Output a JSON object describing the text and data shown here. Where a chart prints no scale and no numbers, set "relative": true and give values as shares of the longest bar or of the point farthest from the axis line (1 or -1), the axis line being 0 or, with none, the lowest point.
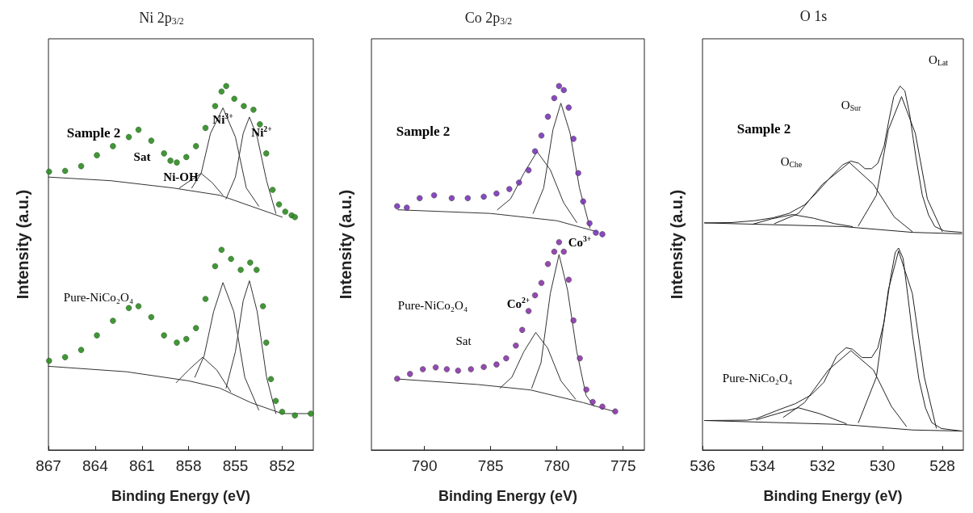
{
  "chart_data": [
    {
      "type": "line",
      "title": "Ni 2p$_{3/2}$",
      "xlabel": "Binding Energy (eV)",
      "ylabel": "Intensity (a.u.)",
      "relative": true,
      "xlim": [
        867,
        850
      ],
      "xticks": [
        867,
        864,
        861,
        858,
        855,
        852
      ],
      "line_style": "solid",
      "series": [
        {
          "type": "line",
          "color": "#333333",
          "x": [
            867,
            863,
            859,
            856,
            854,
            852
          ],
          "values": [
            0.75,
            0.74,
            0.72,
            0.7,
            0.67,
            0.64
          ]
        },
        {
          "type": "line",
          "color": "#333333",
          "x": [
            858.6,
            857.9,
            857.2,
            856.5,
            855.8
          ],
          "values": [
            0.72,
            0.74,
            0.76,
            0.735,
            0.7
          ]
        },
        {
          "type": "line",
          "color": "#333333",
          "x": [
            857.8,
            857.2,
            856.6,
            855.8,
            855.0,
            854.3,
            853.5
          ],
          "values": [
            0.72,
            0.76,
            0.87,
            0.94,
            0.86,
            0.72,
            0.67
          ]
        },
        {
          "type": "line",
          "color": "#333333",
          "x": [
            855.6,
            855.0,
            854.5,
            854.1,
            853.6,
            853.0,
            852.4
          ],
          "values": [
            0.69,
            0.75,
            0.87,
            0.915,
            0.86,
            0.74,
            0.65
          ]
        },
        {
          "type": "line",
          "color": "#333333",
          "x": [
            867,
            862,
            858,
            856,
            854,
            852,
            850.2
          ],
          "values": [
            0.23,
            0.215,
            0.19,
            0.17,
            0.13,
            0.1,
            0.1
          ]
        },
        {
          "type": "line",
          "color": "#333333",
          "x": [
            858.8,
            858.0,
            857.1,
            856.2,
            855.3
          ],
          "values": [
            0.185,
            0.22,
            0.255,
            0.22,
            0.16
          ]
        },
        {
          "type": "line",
          "color": "#333333",
          "x": [
            857.6,
            857.0,
            856.4,
            855.8,
            855.1,
            854.4,
            853.5
          ],
          "values": [
            0.2,
            0.26,
            0.38,
            0.46,
            0.38,
            0.2,
            0.11
          ]
        },
        {
          "type": "line",
          "color": "#333333",
          "x": [
            855.6,
            855.0,
            854.5,
            854.1,
            853.6,
            853.0,
            852.4
          ],
          "values": [
            0.17,
            0.27,
            0.41,
            0.465,
            0.38,
            0.2,
            0.1
          ]
        },
        {
          "type": "scatter",
          "marker": "circle",
          "color": "#2e8b22",
          "x": [
            866.96,
            865.93,
            864.9,
            863.89,
            862.86,
            861.84,
            861.22,
            860.4,
            859.58,
            859.17,
            858.76,
            858.15,
            857.53,
            856.92,
            856.3,
            855.89,
            855.59,
            855.07,
            854.46,
            853.84,
            853.43,
            853.02,
            852.61,
            852.2,
            851.8,
            851.39,
            851.18
          ],
          "values": [
            0.765,
            0.767,
            0.78,
            0.81,
            0.835,
            0.86,
            0.88,
            0.85,
            0.815,
            0.795,
            0.79,
            0.805,
            0.835,
            0.885,
            0.945,
            0.985,
            1.0,
            0.965,
            0.945,
            0.935,
            0.895,
            0.815,
            0.715,
            0.675,
            0.655,
            0.645,
            0.64
          ]
        },
        {
          "type": "scatter",
          "marker": "circle",
          "color": "#2e8b22",
          "x": [
            866.96,
            865.93,
            864.9,
            863.89,
            862.86,
            861.84,
            861.22,
            860.4,
            859.58,
            858.76,
            858.15,
            857.53,
            856.92,
            856.3,
            855.89,
            855.28,
            854.66,
            854.05,
            853.64,
            853.23,
            853.02,
            852.72,
            852.41,
            852.0,
            851.18,
            850.16
          ],
          "values": [
            0.245,
            0.255,
            0.275,
            0.315,
            0.355,
            0.39,
            0.395,
            0.365,
            0.315,
            0.295,
            0.305,
            0.335,
            0.415,
            0.505,
            0.55,
            0.525,
            0.495,
            0.515,
            0.495,
            0.395,
            0.295,
            0.195,
            0.135,
            0.105,
            0.095,
            0.1
          ]
        }
      ],
      "annotations": [
        "Sample 2",
        "Sat",
        "Ni-OH",
        "Ni$^{3+}$",
        "Ni$^{2+}$",
        "Pure-NiCo₂O₄"
      ]
    },
    {
      "type": "line",
      "title": "Co 2p$_{3/2}$",
      "xlabel": "Binding Energy (eV)",
      "ylabel": "Intensity (a.u.)",
      "relative": true,
      "xlim": [
        794,
        773.4
      ],
      "xticks": [
        790,
        785,
        780,
        775
      ],
      "line_style": "solid",
      "series": [
        {
          "type": "line",
          "color": "#333333",
          "x": [
            792,
            785,
            780,
            777
          ],
          "values": [
            0.66,
            0.65,
            0.63,
            0.6
          ]
        },
        {
          "type": "line",
          "color": "#333333",
          "x": [
            784.5,
            783.5,
            782.5,
            781.5,
            780.5,
            779.5,
            778.5
          ],
          "values": [
            0.66,
            0.69,
            0.76,
            0.82,
            0.77,
            0.68,
            0.625
          ]
        },
        {
          "type": "line",
          "color": "#333333",
          "x": [
            781.8,
            781.0,
            780.3,
            779.7,
            779.0,
            778.3,
            777.5
          ],
          "values": [
            0.65,
            0.72,
            0.88,
            0.953,
            0.87,
            0.72,
            0.61
          ]
        },
        {
          "type": "line",
          "color": "#333333",
          "x": [
            792,
            786,
            782,
            778,
            775.6
          ],
          "values": [
            0.195,
            0.18,
            0.165,
            0.13,
            0.105
          ]
        },
        {
          "type": "line",
          "color": "#333333",
          "x": [
            784.3,
            783.4,
            782.5,
            781.6,
            780.7,
            779.7,
            778.6
          ],
          "values": [
            0.17,
            0.2,
            0.27,
            0.323,
            0.28,
            0.19,
            0.14
          ]
        },
        {
          "type": "line",
          "color": "#333333",
          "x": [
            781.9,
            781.2,
            780.5,
            779.84,
            779.2,
            778.5,
            777.8,
            777.2
          ],
          "values": [
            0.17,
            0.24,
            0.43,
            0.537,
            0.44,
            0.27,
            0.15,
            0.12
          ]
        },
        {
          "type": "scatter",
          "marker": "circle",
          "color": "#7b35b8",
          "x": [
            792.06,
            791.33,
            790.36,
            789.27,
            787.94,
            786.73,
            785.52,
            784.56,
            783.59,
            782.86,
            782.14,
            781.65,
            781.17,
            780.68,
            780.2,
            779.84,
            779.48,
            779.11,
            778.75,
            778.39,
            778.02,
            777.54,
            777.06,
            776.57
          ],
          "values": [
            0.67,
            0.666,
            0.692,
            0.7,
            0.692,
            0.692,
            0.696,
            0.705,
            0.717,
            0.735,
            0.769,
            0.821,
            0.864,
            0.916,
            0.967,
            1.0,
            0.989,
            0.941,
            0.855,
            0.761,
            0.683,
            0.623,
            0.597,
            0.593
          ]
        },
        {
          "type": "scatter",
          "marker": "circle",
          "color": "#8a35a8",
          "x": [
            792.06,
            791.09,
            790.12,
            789.15,
            788.31,
            787.46,
            786.49,
            785.52,
            784.56,
            783.83,
            783.1,
            782.62,
            782.14,
            781.65,
            781.17,
            780.68,
            780.2,
            779.84,
            779.48,
            779.11,
            778.75,
            778.27,
            777.78,
            777.3,
            776.57,
            775.6
          ],
          "values": [
            0.196,
            0.209,
            0.222,
            0.227,
            0.222,
            0.218,
            0.222,
            0.228,
            0.235,
            0.252,
            0.287,
            0.33,
            0.382,
            0.425,
            0.459,
            0.511,
            0.545,
            0.571,
            0.545,
            0.468,
            0.356,
            0.252,
            0.166,
            0.132,
            0.119,
            0.106
          ]
        }
      ],
      "annotations": [
        "Sample 2",
        "Pure-NiCo₂O₄",
        "Co$^{2+}$",
        "Co$^{3+}$",
        "Sat"
      ]
    },
    {
      "type": "line",
      "title": "O 1s",
      "xlabel": "Binding Energy (eV)",
      "ylabel": "Intensity (a.u.)",
      "relative": true,
      "xlim": [
        536,
        527.3
      ],
      "xticks": [
        536,
        534,
        532,
        530,
        528
      ],
      "line_style": "solid",
      "series": [
        {
          "type": "line",
          "color": "#222222",
          "x": [
            535.93,
            535.03,
            534.28,
            533.65,
            533.12,
            532.59,
            532.17,
            531.74,
            531.32,
            531.05,
            530.79,
            530.58,
            530.36,
            530.15,
            529.94,
            529.78,
            529.62,
            529.41,
            529.25,
            529.09,
            528.88,
            528.67,
            528.46,
            528.25,
            527.93,
            527.35
          ],
          "values": [
            0.624,
            0.625,
            0.63,
            0.638,
            0.65,
            0.674,
            0.709,
            0.749,
            0.784,
            0.794,
            0.788,
            0.773,
            0.773,
            0.788,
            0.836,
            0.907,
            0.971,
            1.0,
            0.987,
            0.923,
            0.804,
            0.701,
            0.646,
            0.614,
            0.602,
            0.598
          ]
        },
        {
          "type": "line",
          "color": "#222222",
          "x": [
            535.93,
            531.32,
            528.99,
            527.35
          ],
          "values": [
            0.624,
            0.614,
            0.598,
            0.594
          ]
        },
        {
          "type": "line",
          "color": "#222222",
          "x": [
            534.3,
            533.7,
            533.0,
            532.3,
            531.6,
            531.0
          ],
          "values": [
            0.621,
            0.635,
            0.647,
            0.637,
            0.622,
            0.614
          ]
        },
        {
          "type": "line",
          "color": "#222222",
          "x": [
            533.6,
            532.8,
            532.0,
            531.1,
            530.3,
            529.6,
            529.0
          ],
          "values": [
            0.622,
            0.65,
            0.73,
            0.79,
            0.73,
            0.64,
            0.6
          ]
        },
        {
          "type": "line",
          "color": "#222222",
          "x": [
            530.8,
            530.2,
            529.8,
            529.36,
            528.9,
            528.5,
            528.0
          ],
          "values": [
            0.616,
            0.7,
            0.88,
            0.971,
            0.87,
            0.69,
            0.6
          ]
        },
        {
          "type": "line",
          "color": "#222222",
          "x": [
            535.93,
            534.5,
            534.18,
            533.44,
            532.91,
            532.38,
            531.95,
            531.53,
            531.21,
            531.0,
            530.68,
            530.36,
            530.15,
            529.94,
            529.73,
            529.57,
            529.46,
            529.31,
            529.15,
            528.99,
            528.78,
            528.56,
            528.35,
            528.03,
            527.35
          ],
          "values": [
            0.081,
            0.082,
            0.087,
            0.111,
            0.127,
            0.151,
            0.186,
            0.258,
            0.281,
            0.277,
            0.254,
            0.254,
            0.281,
            0.353,
            0.471,
            0.543,
            0.555,
            0.527,
            0.424,
            0.313,
            0.194,
            0.115,
            0.075,
            0.059,
            0.052
          ]
        },
        {
          "type": "line",
          "color": "#222222",
          "x": [
            535.93,
            531.3,
            529.0,
            527.35
          ],
          "values": [
            0.081,
            0.07,
            0.055,
            0.052
          ]
        },
        {
          "type": "line",
          "color": "#222222",
          "x": [
            534.2,
            533.5,
            532.8,
            532.1,
            531.2
          ],
          "values": [
            0.083,
            0.1,
            0.116,
            0.1,
            0.072
          ]
        },
        {
          "type": "line",
          "color": "#222222",
          "x": [
            533.3,
            532.6,
            531.8,
            531.05,
            530.3,
            529.7,
            529.2
          ],
          "values": [
            0.09,
            0.13,
            0.22,
            0.273,
            0.22,
            0.12,
            0.065
          ]
        },
        {
          "type": "line",
          "color": "#222222",
          "x": [
            530.8,
            530.2,
            529.8,
            529.46,
            529.0,
            528.6,
            528.2
          ],
          "values": [
            0.075,
            0.2,
            0.44,
            0.547,
            0.43,
            0.2,
            0.06
          ]
        }
      ],
      "annotations": [
        "Sample 2",
        "O$_{Che}$",
        "O$_{Sur}$",
        "O$_{Lat}$",
        "Pure-NiCo₂O₄"
      ]
    }
  ]
}
